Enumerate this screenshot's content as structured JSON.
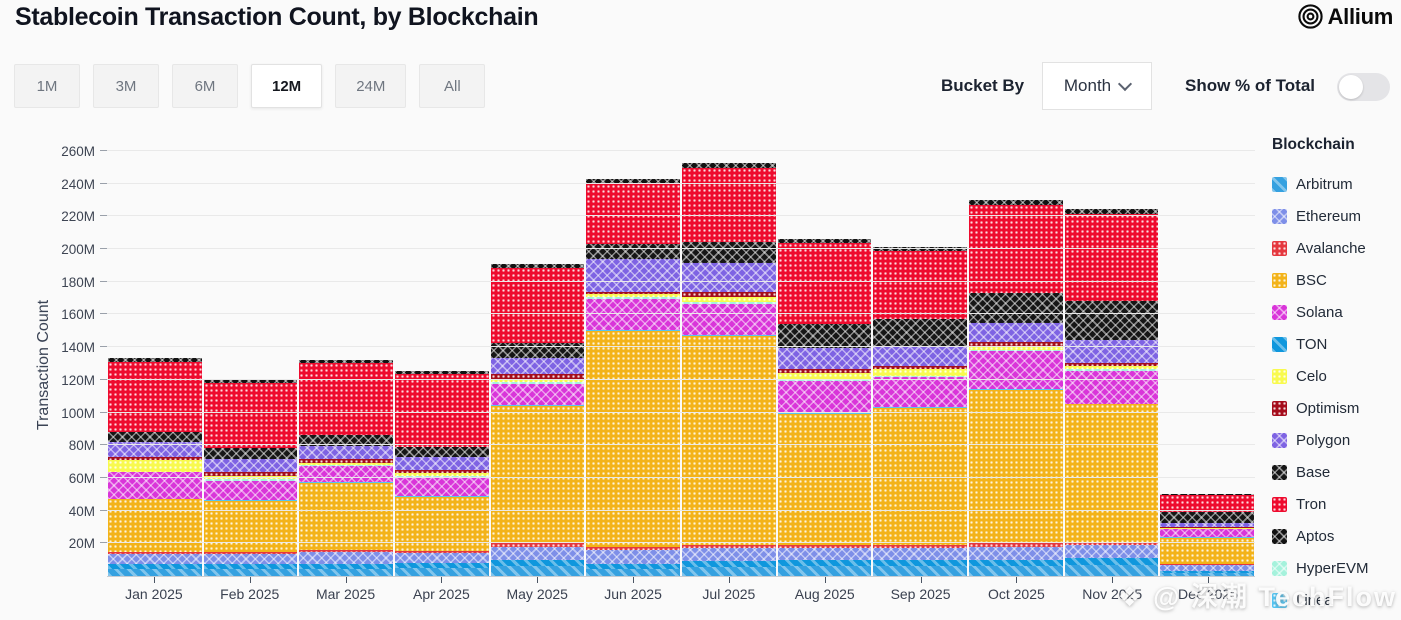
{
  "header": {
    "title": "Stablecoin Transaction Count, by Blockchain",
    "brand": "Allium"
  },
  "controls": {
    "ranges": [
      {
        "label": "1M",
        "selected": false
      },
      {
        "label": "3M",
        "selected": false
      },
      {
        "label": "6M",
        "selected": false
      },
      {
        "label": "12M",
        "selected": true
      },
      {
        "label": "24M",
        "selected": false
      },
      {
        "label": "All",
        "selected": false
      }
    ],
    "bucket_by_label": "Bucket By",
    "bucket_value": "Month",
    "show_pct_label": "Show % of Total",
    "toggle_on": false
  },
  "watermark": {
    "text": "❖ @ 深潮 TechFlow"
  },
  "chart_data": {
    "type": "bar",
    "stacked": true,
    "title": "Stablecoin Transaction Count, by Blockchain",
    "xlabel": "",
    "ylabel": "Transaction Count",
    "unit": "M transactions",
    "ylim": [
      0,
      260
    ],
    "ytick_step": 20,
    "grid": true,
    "legend_title": "Blockchain",
    "legend_position": "right",
    "categories": [
      "Jan 2025",
      "Feb 2025",
      "Mar 2025",
      "Apr 2025",
      "May 2025",
      "Jun 2025",
      "Jul 2025",
      "Aug 2025",
      "Sep 2025",
      "Oct 2025",
      "Nov 2025",
      "Dec 2025"
    ],
    "totals_approx_M": [
      133,
      119,
      130,
      123,
      189,
      241,
      252,
      205,
      202,
      229,
      223,
      50
    ],
    "legend_order": [
      "Arbitrum",
      "Ethereum",
      "Avalanche",
      "BSC",
      "Solana",
      "TON",
      "Celo",
      "Optimism",
      "Polygon",
      "Base",
      "Tron",
      "Aptos",
      "HyperEVM",
      "Linea"
    ],
    "stack_order": [
      "Arbitrum",
      "TON",
      "Ethereum",
      "Avalanche",
      "BSC",
      "Linea",
      "Solana",
      "HyperEVM",
      "Celo",
      "Optimism",
      "Polygon",
      "Base",
      "Tron",
      "Aptos"
    ],
    "series": [
      {
        "name": "Arbitrum",
        "color": "#35a1e0",
        "pattern": "stripe",
        "values": [
          4.5,
          4.5,
          4.5,
          5,
          6,
          4.5,
          5.5,
          6,
          6,
          6,
          7,
          2
        ]
      },
      {
        "name": "Ethereum",
        "color": "#7e8fe8",
        "pattern": "cross",
        "values": [
          6,
          6,
          7,
          6,
          8,
          8.5,
          8,
          7,
          7,
          8,
          8,
          4
        ]
      },
      {
        "name": "Avalanche",
        "color": "#e5383f",
        "pattern": "dots",
        "values": [
          1.5,
          1.5,
          1.5,
          1.5,
          2,
          2,
          2,
          2,
          2,
          2,
          2,
          0.5
        ]
      },
      {
        "name": "BSC",
        "color": "#f3b319",
        "pattern": "dots",
        "values": [
          32,
          31,
          41,
          33,
          84,
          132,
          128,
          80,
          84,
          94,
          84,
          16
        ]
      },
      {
        "name": "Solana",
        "color": "#d935d9",
        "pattern": "cross",
        "values": [
          16,
          12,
          10,
          12,
          13,
          19,
          19,
          20,
          18,
          23,
          20,
          5
        ]
      },
      {
        "name": "TON",
        "color": "#0f97dd",
        "pattern": "stripe",
        "values": [
          3,
          3,
          3,
          3,
          4,
          3,
          3.5,
          4,
          4,
          4,
          4,
          1
        ]
      },
      {
        "name": "Celo",
        "color": "#f8fa4f",
        "pattern": "dots",
        "values": [
          7,
          2,
          1.5,
          1.5,
          2,
          2,
          3.5,
          4,
          4,
          2,
          2,
          0.5
        ]
      },
      {
        "name": "Optimism",
        "color": "#a50d1c",
        "pattern": "dots",
        "values": [
          2,
          2,
          2,
          2,
          3,
          1.5,
          2.5,
          2,
          2,
          2.5,
          2,
          0.5
        ]
      },
      {
        "name": "Polygon",
        "color": "#7e63e3",
        "pattern": "cross",
        "values": [
          9,
          8,
          8,
          8,
          10,
          20,
          18,
          13,
          12,
          12,
          14,
          2.5
        ]
      },
      {
        "name": "Base",
        "color": "#161616",
        "pattern": "cross",
        "values": [
          6,
          7,
          7,
          6,
          9,
          9,
          13,
          15,
          16.5,
          18,
          24,
          6.5
        ]
      },
      {
        "name": "Tron",
        "color": "#ee0b2e",
        "pattern": "dots",
        "values": [
          43,
          40,
          44,
          45,
          46,
          37,
          45,
          49,
          42,
          54,
          53,
          10.5
        ]
      },
      {
        "name": "Aptos",
        "color": "#121212",
        "pattern": "cross",
        "values": [
          2.5,
          2,
          2,
          1.5,
          2.5,
          3,
          3,
          3,
          2.5,
          3,
          3,
          1
        ]
      },
      {
        "name": "HyperEVM",
        "color": "#a5f2dc",
        "pattern": "cross",
        "values": [
          0.5,
          1,
          0.5,
          0.5,
          1,
          1,
          1,
          1,
          1,
          1,
          1,
          0.3
        ]
      },
      {
        "name": "Linea",
        "color": "#55c5f2",
        "pattern": "dots",
        "values": [
          0.4,
          0.4,
          0.4,
          0.4,
          0.5,
          0.5,
          0.5,
          0.5,
          0.5,
          0.5,
          0.5,
          0.2
        ]
      }
    ]
  }
}
